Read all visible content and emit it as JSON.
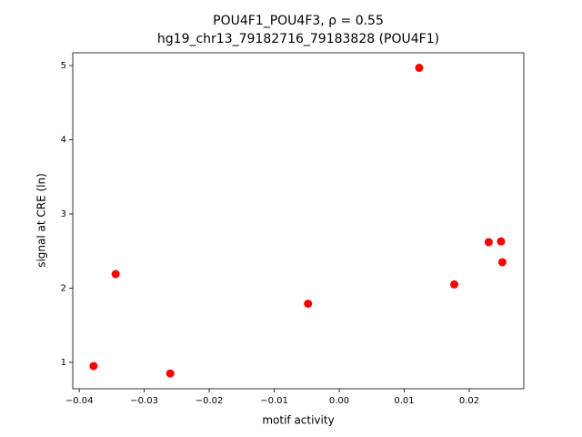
{
  "chart_data": {
    "type": "scatter",
    "title": "POU4F1_POU4F3, ρ = 0.55",
    "subtitle": "hg19_chr13_79182716_79183828 (POU4F1)",
    "x_label": "motif activity",
    "y_label": "signal at CRE (ln)",
    "color": "#ff0000",
    "x": [
      -0.0378,
      -0.0344,
      -0.026,
      -0.0048,
      0.0123,
      0.0177,
      0.023,
      0.0249,
      0.0251
    ],
    "values": [
      0.95,
      2.19,
      0.85,
      1.79,
      4.97,
      2.05,
      2.62,
      2.63,
      2.35
    ],
    "xlim": [
      -0.041,
      0.0284
    ],
    "ylim": [
      0.644,
      5.172
    ],
    "xticks": [
      {
        "value": -0.04,
        "label": "−0.04"
      },
      {
        "value": -0.03,
        "label": "−0.03"
      },
      {
        "value": -0.02,
        "label": "−0.02"
      },
      {
        "value": -0.01,
        "label": "−0.01"
      },
      {
        "value": 0,
        "label": "0.00"
      },
      0.01,
      0.02
    ],
    "yticks": [
      1,
      2,
      3,
      4,
      5
    ],
    "grid": false
  }
}
